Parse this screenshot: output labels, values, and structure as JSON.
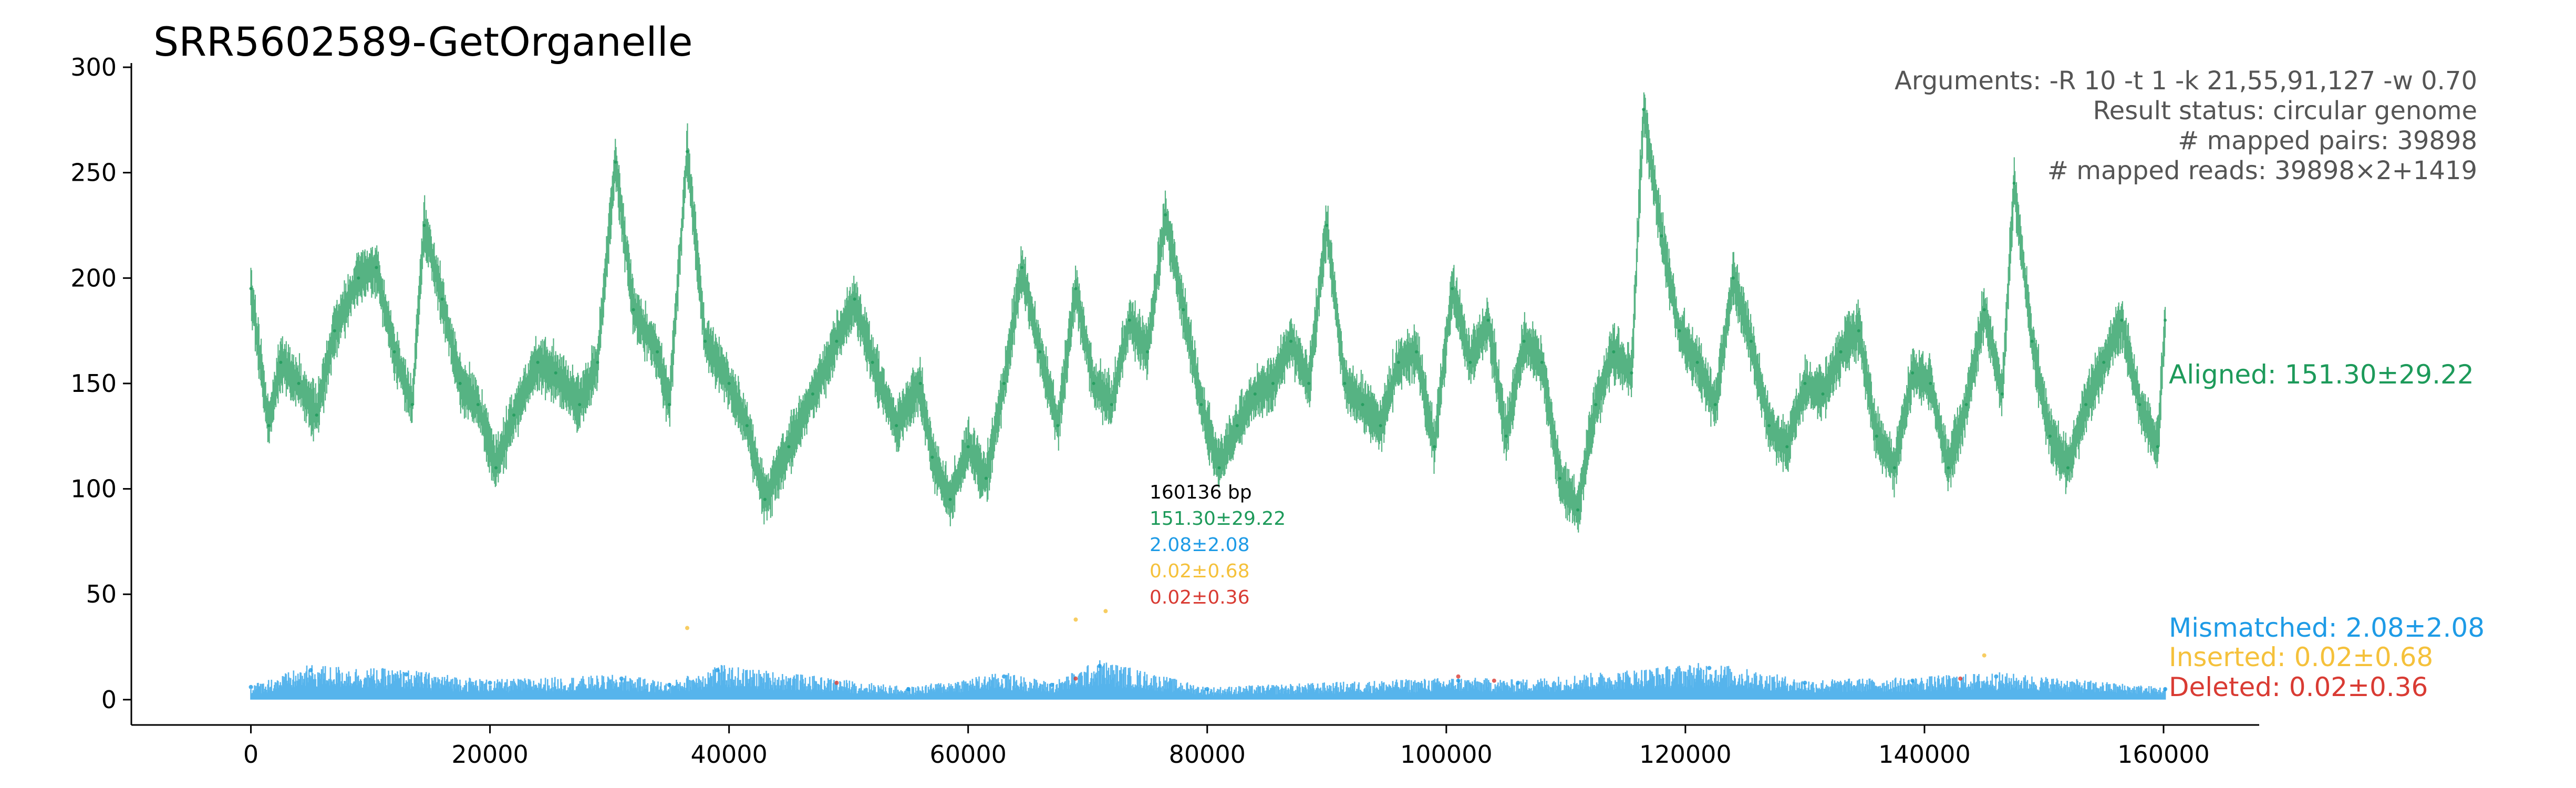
{
  "chart_data": {
    "type": "scatter",
    "title": "SRR5602589-GetOrganelle",
    "xlabel": "",
    "ylabel": "",
    "xlim": [
      -10000,
      168000
    ],
    "ylim": [
      -12,
      302
    ],
    "x_ticks": [
      0,
      20000,
      40000,
      60000,
      80000,
      100000,
      120000,
      140000,
      160000
    ],
    "y_ticks": [
      0,
      50,
      100,
      150,
      200,
      250,
      300
    ],
    "grid": false,
    "genome_length": 160136,
    "info_lines": [
      "Arguments: -R 10 -t 1 -k 21,55,91,127 -w 0.70",
      "Result status: circular genome",
      "# mapped pairs: 39898",
      "# mapped reads: 39898×2+1419"
    ],
    "center_stats": [
      {
        "text": "160136 bp",
        "color": "#000000"
      },
      {
        "text": "151.30±29.22",
        "color": "#1d9a5a"
      },
      {
        "text": "2.08±2.08",
        "color": "#1e9be6"
      },
      {
        "text": "0.02±0.68",
        "color": "#f5c13b"
      },
      {
        "text": "0.02±0.36",
        "color": "#d93b33"
      }
    ],
    "series": [
      {
        "name": "Aligned",
        "label": "Aligned: 151.30±29.22",
        "color": "#1d9a5a",
        "mean": 151.3,
        "sd": 29.22,
        "x": [
          0,
          1500,
          2500,
          4000,
          5500,
          7000,
          9000,
          10500,
          12000,
          13500,
          14500,
          16000,
          17500,
          19000,
          20500,
          22000,
          24000,
          25500,
          27500,
          29000,
          30500,
          32000,
          34000,
          35000,
          36500,
          38000,
          40000,
          41500,
          43000,
          45000,
          47000,
          49000,
          50500,
          52000,
          54000,
          56000,
          57000,
          58500,
          60000,
          61500,
          63000,
          64500,
          66000,
          67500,
          69000,
          70500,
          72000,
          73500,
          75000,
          76500,
          78000,
          79500,
          81000,
          82500,
          84000,
          85500,
          87000,
          88500,
          90000,
          91500,
          93000,
          94500,
          96000,
          97500,
          99000,
          100500,
          102000,
          103500,
          105000,
          106500,
          108000,
          109500,
          111000,
          112500,
          114000,
          115500,
          116500,
          118000,
          119500,
          121000,
          122500,
          124000,
          125500,
          127000,
          128500,
          130000,
          131500,
          133000,
          134500,
          136000,
          137500,
          139000,
          140500,
          142000,
          143500,
          145000,
          146500,
          147500,
          149000,
          150500,
          152000,
          153500,
          155000,
          156500,
          158000,
          159500,
          160136
        ],
        "y": [
          195,
          130,
          160,
          150,
          135,
          175,
          200,
          205,
          165,
          140,
          225,
          190,
          150,
          140,
          110,
          135,
          160,
          155,
          140,
          160,
          255,
          185,
          165,
          140,
          260,
          170,
          150,
          130,
          95,
          120,
          145,
          170,
          190,
          160,
          130,
          150,
          115,
          95,
          120,
          105,
          150,
          205,
          165,
          130,
          195,
          150,
          140,
          180,
          165,
          230,
          185,
          140,
          110,
          130,
          145,
          150,
          170,
          150,
          225,
          150,
          140,
          130,
          160,
          165,
          120,
          195,
          160,
          180,
          125,
          170,
          160,
          105,
          90,
          140,
          165,
          155,
          280,
          220,
          175,
          160,
          140,
          200,
          170,
          130,
          120,
          150,
          145,
          165,
          175,
          125,
          110,
          155,
          150,
          110,
          140,
          185,
          145,
          245,
          170,
          125,
          110,
          140,
          160,
          180,
          140,
          120,
          180
        ]
      },
      {
        "name": "Mismatched",
        "label": "Mismatched: 2.08±2.08",
        "color": "#1e9be6",
        "mean": 2.08,
        "sd": 2.08,
        "x": [
          0,
          5000,
          13000,
          20000,
          31000,
          35000,
          39000,
          55000,
          63000,
          67000,
          71000,
          80000,
          101000,
          106000,
          122000,
          130000,
          139000,
          146000,
          160136
        ],
        "y": [
          6,
          14,
          12,
          8,
          10,
          7,
          14,
          5,
          11,
          7,
          16,
          5,
          9,
          8,
          15,
          8,
          9,
          11,
          5
        ]
      },
      {
        "name": "Inserted",
        "label": "Inserted: 0.02±0.68",
        "color": "#f5c13b",
        "mean": 0.02,
        "sd": 0.68,
        "x": [
          36500,
          69000,
          71500,
          145000
        ],
        "y": [
          34,
          38,
          42,
          21
        ]
      },
      {
        "name": "Deleted",
        "label": "Deleted: 0.02±0.36",
        "color": "#d93b33",
        "mean": 0.02,
        "sd": 0.36,
        "x": [
          49000,
          69000,
          101000,
          104000,
          143000
        ],
        "y": [
          8,
          10,
          11,
          9,
          10
        ]
      }
    ]
  }
}
